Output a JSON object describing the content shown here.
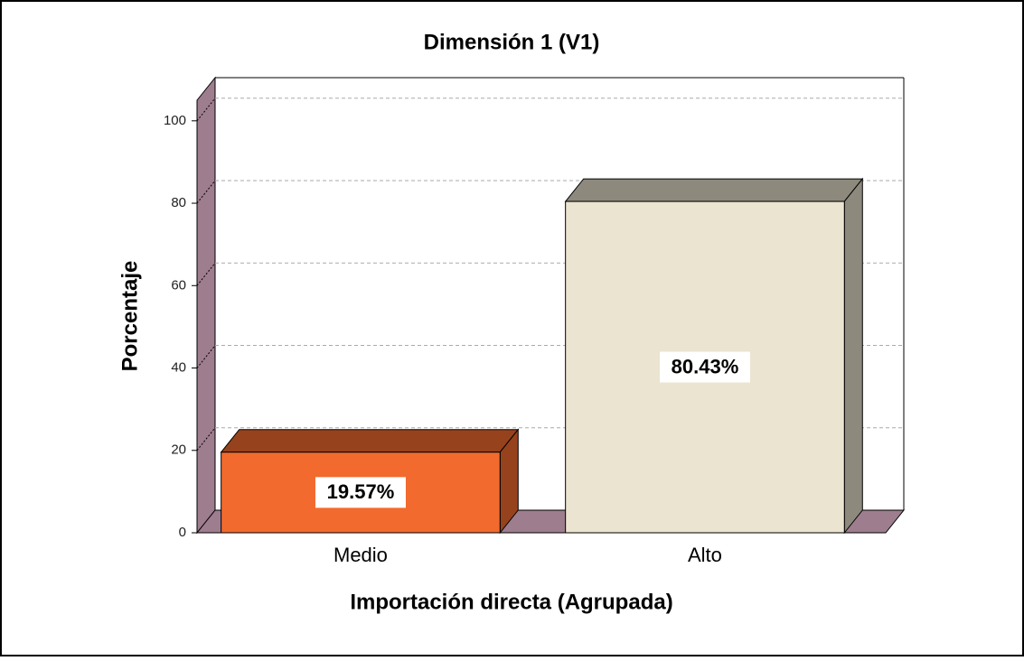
{
  "chart_data": {
    "type": "bar3d",
    "title": "Dimensión 1 (V1)",
    "x_label": "Importación directa (Agrupada)",
    "y_label": "Porcentaje",
    "categories": [
      "Medio",
      "Alto"
    ],
    "values": [
      19.57,
      80.43
    ],
    "value_labels": [
      "19.57%",
      "80.43%"
    ],
    "colors": [
      "#f26a2e",
      "#ebe4d0"
    ],
    "ylim": [
      0,
      105
    ],
    "yticks": [
      0,
      20,
      40,
      60,
      80,
      100
    ],
    "grid": true
  }
}
